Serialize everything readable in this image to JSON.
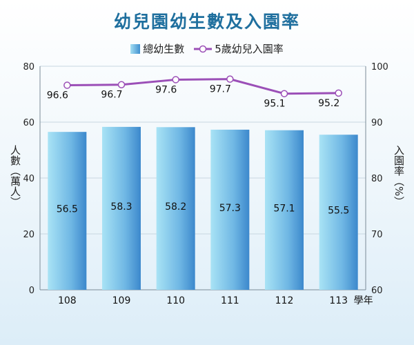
{
  "chart_data": {
    "type": "bar",
    "title": "幼兒園幼生數及入園率",
    "categories": [
      "108",
      "109",
      "110",
      "111",
      "112",
      "113"
    ],
    "x_unit": "學年",
    "series": [
      {
        "name": "總幼生數",
        "type": "bar",
        "axis": "left",
        "values": [
          56.5,
          58.3,
          58.2,
          57.3,
          57.1,
          55.5
        ],
        "color": "#5aa7dc"
      },
      {
        "name": "5歲幼兒入園率",
        "type": "line",
        "axis": "right",
        "values": [
          96.6,
          96.7,
          97.6,
          97.7,
          95.1,
          95.2
        ],
        "color": "#9b4fb7"
      }
    ],
    "ylabel_left": "人數（萬人）",
    "ylabel_right": "入園率（%）",
    "ylim_left": [
      0,
      80
    ],
    "ylim_right": [
      60,
      100
    ],
    "yticks_left": [
      "0",
      "20",
      "40",
      "60",
      "80"
    ],
    "yticks_right": [
      "60",
      "70",
      "80",
      "90",
      "100"
    ],
    "legend_position": "top-center",
    "grid": true
  }
}
